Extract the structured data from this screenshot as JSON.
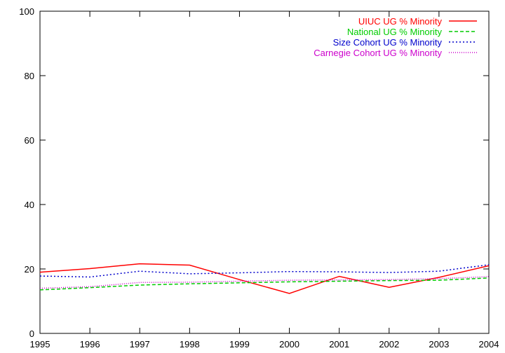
{
  "chart_data": {
    "type": "line",
    "title": "",
    "xlabel": "",
    "ylabel": "",
    "xlim": [
      1995,
      2004
    ],
    "ylim": [
      0,
      100
    ],
    "x_ticks": [
      1995,
      1996,
      1997,
      1998,
      1999,
      2000,
      2001,
      2002,
      2003,
      2004
    ],
    "y_ticks": [
      0,
      20,
      40,
      60,
      80,
      100
    ],
    "grid": false,
    "legend_position": "top-right",
    "x": [
      1995,
      1996,
      1997,
      1998,
      1999,
      2000,
      2001,
      2002,
      2003,
      2004
    ],
    "series": [
      {
        "name": "UIUC UG % Minority",
        "color": "#ff0000",
        "style": "solid",
        "values": [
          19.0,
          20.1,
          21.6,
          21.2,
          16.7,
          12.4,
          17.7,
          14.3,
          17.4,
          21.0
        ]
      },
      {
        "name": "National UG % Minority",
        "color": "#00cc00",
        "style": "dashed",
        "values": [
          13.5,
          14.2,
          15.0,
          15.4,
          15.7,
          16.0,
          16.2,
          16.4,
          16.5,
          17.2
        ]
      },
      {
        "name": "Size Cohort UG % Minority",
        "color": "#0000cc",
        "style": "dotted",
        "values": [
          17.8,
          17.5,
          19.3,
          18.5,
          18.8,
          19.2,
          19.1,
          18.9,
          19.3,
          21.3
        ]
      },
      {
        "name": "Carnegie Cohort UG % Minority",
        "color": "#cc00cc",
        "style": "fine-dotted",
        "values": [
          14.0,
          14.5,
          15.8,
          15.9,
          16.2,
          16.5,
          16.6,
          16.7,
          17.0,
          17.6
        ]
      }
    ]
  }
}
